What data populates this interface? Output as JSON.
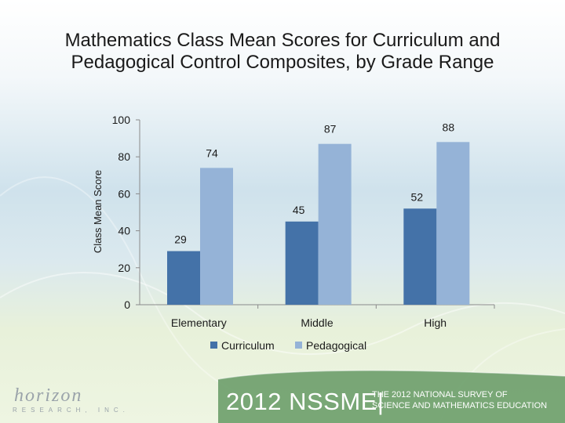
{
  "slide": {
    "title_line1": "Mathematics Class Mean Scores for Curriculum and",
    "title_line2": "Pedagogical Control Composites, by Grade Range",
    "footer_event": "2012 NSSME|",
    "footer_survey_line1": "THE 2012 NATIONAL SURVEY OF",
    "footer_survey_line2": "SCIENCE AND MATHEMATICS EDUCATION",
    "logo_line1": "horizon",
    "logo_line2": "RESEARCH, INC."
  },
  "chart_data": {
    "type": "bar",
    "title": "Mathematics Class Mean Scores for Curriculum and Pedagogical Control Composites, by Grade Range",
    "ylabel": "Class Mean Score",
    "xlabel": "",
    "categories": [
      "Elementary",
      "Middle",
      "High"
    ],
    "series": [
      {
        "name": "Curriculum",
        "values": [
          29,
          45,
          52
        ],
        "color": "#4472a8"
      },
      {
        "name": "Pedagogical",
        "values": [
          74,
          87,
          88
        ],
        "color": "#95b3d7"
      }
    ],
    "ylim": [
      0,
      100
    ],
    "yticks": [
      0,
      20,
      40,
      60,
      80,
      100
    ],
    "grid": false,
    "legend": "bottom"
  }
}
